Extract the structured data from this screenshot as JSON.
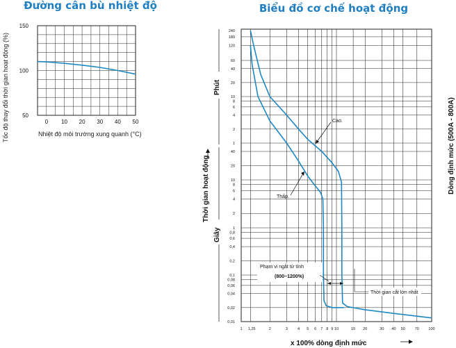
{
  "chart_data": [
    {
      "type": "line",
      "title": "Đường cân bù nhiệt độ",
      "xlabel": "Nhiệt độ môi trường xung quanh (°C)",
      "ylabel": "Tốc độ thay đổi thời gian hoạt động (%)",
      "x_ticks": [
        "0",
        "10",
        "20",
        "30",
        "40",
        "50"
      ],
      "y_ticks": [
        "150",
        "100",
        "50"
      ],
      "xlim": [
        -5,
        50
      ],
      "ylim": [
        50,
        150
      ],
      "grid": true,
      "series": [
        {
          "x": [
            -5,
            0,
            10,
            20,
            30,
            40,
            50
          ],
          "values": [
            110,
            109.6,
            108,
            106,
            103.5,
            100,
            96
          ]
        }
      ]
    },
    {
      "type": "line",
      "title": "Biểu đồ cơ chế hoạt động",
      "xlabel": "x 100% dòng định mức",
      "ylabel": "Thời gian hoạt động",
      "y_unit_upper": "Phút",
      "y_unit_lower": "Giây",
      "right_label": "Dòng định mức (500A - 800A)",
      "x_scale": "log",
      "y_scale": "log",
      "x_ticks": [
        "1",
        "1,25",
        "2",
        "3",
        "4",
        "5",
        "6",
        "7",
        "8",
        "9",
        "10",
        "15",
        "20",
        "30",
        "40",
        "50",
        "70",
        "100"
      ],
      "y_ticks_minutes": [
        "240",
        "180",
        "120",
        "60",
        "40",
        "20",
        "10",
        "8",
        "6",
        "4",
        "2",
        "1"
      ],
      "y_ticks_seconds": [
        "40",
        "20",
        "10",
        "8",
        "6",
        "4",
        "2",
        "1",
        "0,8",
        "0,6",
        "0,4",
        "0,2",
        "0,1",
        "0,08",
        "0,06",
        "0,04",
        "0,02",
        "0,01"
      ],
      "grid": true,
      "series": [
        {
          "name": "Cao.",
          "x": [
            1.25,
            1.35,
            1.6,
            2,
            3,
            4,
            5,
            7,
            9,
            10.5,
            11.3,
            11.4,
            11.4,
            11.6,
            13,
            20,
            40,
            100
          ],
          "y": [
            14400,
            7200,
            1800,
            600,
            240,
            120,
            72,
            40,
            23,
            15,
            9,
            1,
            0.1,
            0.025,
            0.021,
            0.018,
            0.015,
            0.012
          ]
        },
        {
          "name": "Thấp.",
          "x": [
            1.25,
            1.3,
            1.5,
            2,
            3,
            4,
            5,
            6,
            6.8,
            7.2,
            7.3,
            7.3,
            7.4,
            7.8,
            9,
            12
          ],
          "y": [
            7200,
            3000,
            600,
            180,
            60,
            25,
            12,
            7.5,
            5.5,
            4,
            1,
            0.1,
            0.028,
            0.022,
            0.02,
            0.02
          ]
        }
      ],
      "annotations": [
        "Cao.",
        "Thấp.",
        "Phạm vi ngắt từ tính",
        "(800~1200%)",
        "Thời gian cắt lớn nhất"
      ]
    }
  ]
}
